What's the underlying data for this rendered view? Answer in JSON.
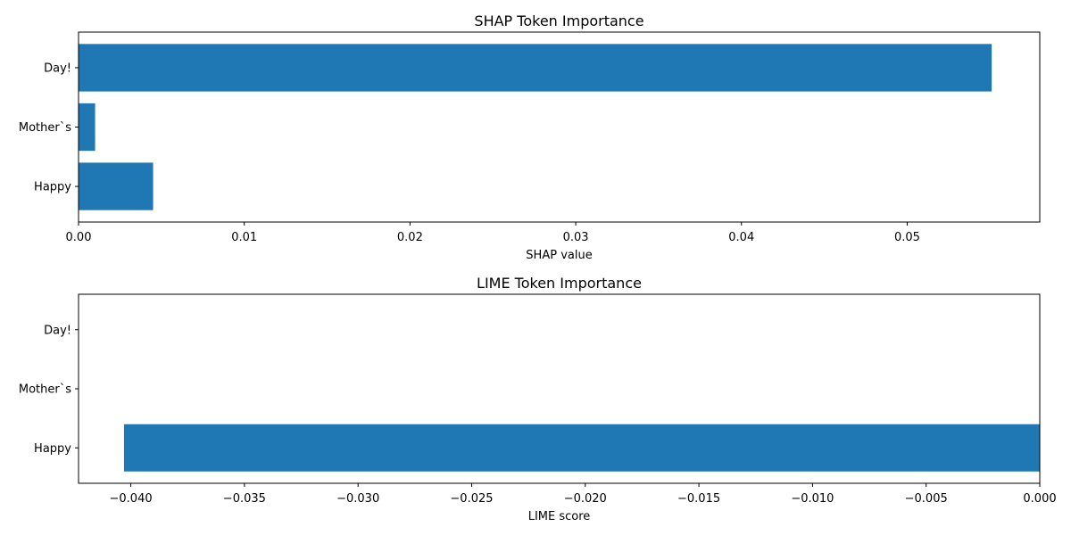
{
  "chart_data": [
    {
      "type": "bar",
      "orientation": "horizontal",
      "title": "SHAP Token Importance",
      "xlabel": "SHAP value",
      "ylabel": "",
      "categories": [
        "Happy",
        "Mother`s",
        "Day!"
      ],
      "values": [
        0.0045,
        0.001,
        0.0551
      ],
      "xlim": [
        0,
        0.058
      ],
      "xticks": [
        0.0,
        0.01,
        0.02,
        0.03,
        0.04,
        0.05
      ],
      "xtick_labels": [
        "0.00",
        "0.01",
        "0.02",
        "0.03",
        "0.04",
        "0.05"
      ],
      "color": "#1f77b4",
      "grid": false
    },
    {
      "type": "bar",
      "orientation": "horizontal",
      "title": "LIME Token Importance",
      "xlabel": "LIME score",
      "ylabel": "",
      "categories": [
        "Happy",
        "Mother`s",
        "Day!"
      ],
      "values": [
        -0.0403,
        0,
        0
      ],
      "xlim": [
        -0.0423,
        0
      ],
      "xticks": [
        -0.04,
        -0.035,
        -0.03,
        -0.025,
        -0.02,
        -0.015,
        -0.01,
        -0.005,
        0.0
      ],
      "xtick_labels": [
        "−0.040",
        "−0.035",
        "−0.030",
        "−0.025",
        "−0.020",
        "−0.015",
        "−0.010",
        "−0.005",
        "0.000"
      ],
      "color": "#1f77b4",
      "grid": false
    }
  ]
}
